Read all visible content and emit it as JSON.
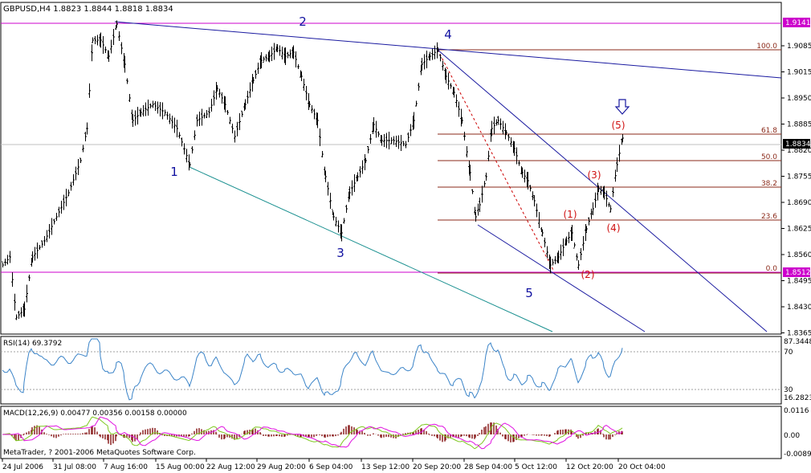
{
  "window": {
    "title": "GBPUSD,H4  1.8823 1.8844 1.8818 1.8834"
  },
  "price_axis": {
    "ticks": [
      "1.9085",
      "1.9015",
      "1.8950",
      "1.8885",
      "1.8820",
      "1.8755",
      "1.8690",
      "1.8625",
      "1.8560",
      "1.8495",
      "1.8430",
      "1.8365"
    ],
    "upper_line_label": "1.9141",
    "current_price_label": "1.8834",
    "lower_line_label": "1.8512"
  },
  "time_axis": {
    "ticks": [
      "24 Jul 2006",
      "31 Jul 08:00",
      "7 Aug 16:00",
      "15 Aug 00:00",
      "22 Aug 12:00",
      "29 Aug 20:00",
      "6 Sep 04:00",
      "13 Sep 12:00",
      "20 Sep 20:00",
      "28 Sep 04:00",
      "5 Oct 12:00",
      "12 Oct 20:00",
      "20 Oct 04:00"
    ]
  },
  "fibonacci": {
    "levels": [
      "100.0",
      "61.8",
      "50.0",
      "38.2",
      "23.6",
      "0.0"
    ]
  },
  "wave_labels": {
    "major": [
      "1",
      "2",
      "3",
      "4",
      "5"
    ],
    "minor": [
      "(1)",
      "(2)",
      "(3)",
      "(4)",
      "(5)"
    ]
  },
  "rsi": {
    "label": "RSI(14) 69.3792",
    "ticks": [
      "87.3448",
      "70",
      "30",
      "16.2823"
    ]
  },
  "macd": {
    "label": "MACD(12,26,9) 0.00477 0.00356 0.00158 0.00000",
    "ticks": [
      "0.0116",
      "0.00",
      "-0.0089"
    ]
  },
  "copyright": "MetaTrader, ? 2001-2006 MetaQuotes Software Corp.",
  "colors": {
    "frame": "#000000",
    "bars": "#000000",
    "horizontal_line": "#cc00cc",
    "trend_blue": "#1a1aa0",
    "channel_teal": "#1a9090",
    "fib_line": "#8b2a1a",
    "fib_diagonal": "#cc0000",
    "wave_major": "#1010a0",
    "wave_minor": "#d01010",
    "rsi_line": "#3b84c8",
    "macd_hist": "#8b2020",
    "macd_main": "#7ec820",
    "macd_signal": "#e010e0"
  },
  "icons": [
    "down-arrow-icon"
  ]
}
